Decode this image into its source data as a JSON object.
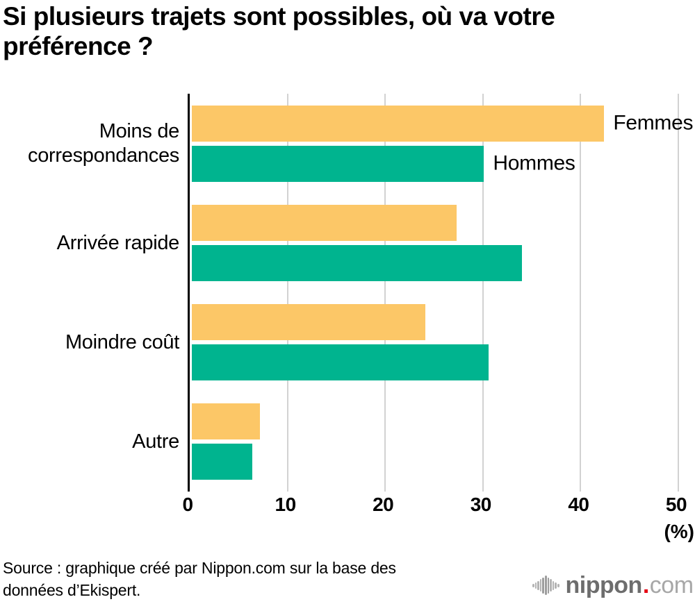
{
  "title": "Si plusieurs trajets sont possibles, où va votre préférence ?",
  "chart_data": {
    "type": "bar",
    "orientation": "horizontal",
    "title": "Si plusieurs trajets sont possibles, où va votre préférence ?",
    "categories": [
      "Moins de correspondances",
      "Arrivée rapide",
      "Moindre coût",
      "Autre"
    ],
    "series": [
      {
        "name": "Femmes",
        "color": "#fcc767",
        "values": [
          42.2,
          27.1,
          23.9,
          7.0
        ]
      },
      {
        "name": "Hommes",
        "color": "#00b48f",
        "values": [
          29.9,
          33.8,
          30.4,
          6.2
        ]
      }
    ],
    "xlabel": "",
    "ylabel": "",
    "unit_label": "(%)",
    "xlim": [
      0,
      50
    ],
    "xticks": [
      0,
      10,
      20,
      30,
      40,
      50
    ],
    "grid": "vertical-gridlines-only",
    "legend_position": "labels-at-end-of-first-group-bars",
    "axis_color": "#000000",
    "gridline_color": "#d2d2d2"
  },
  "source": {
    "lines": [
      "Source : graphique créé par Nippon.com sur la base des",
      "données d’Ekispert."
    ]
  },
  "logo": {
    "name": "nippon",
    "dot": ".",
    "tld": "com",
    "icon": "soundwave-icon",
    "colors": {
      "name": "#6d6d6d",
      "dot": "#e60012",
      "tld": "#a7a7a7",
      "icon": "#b4b4b4"
    }
  }
}
